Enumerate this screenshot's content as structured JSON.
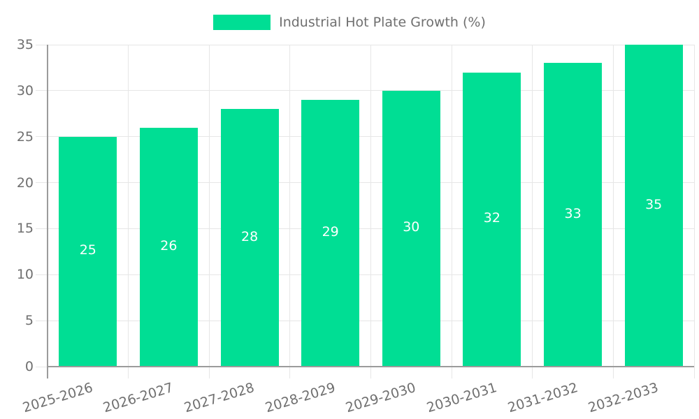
{
  "chart_data": {
    "type": "bar",
    "title": "",
    "legend": {
      "position": "top",
      "label": "Industrial Hot Plate Growth (%)"
    },
    "categories": [
      "2025-2026",
      "2026-2027",
      "2027-2028",
      "2028-2029",
      "2029-2030",
      "2030-2031",
      "2031-2032",
      "2032-2033"
    ],
    "series": [
      {
        "name": "Industrial Hot Plate Growth (%)",
        "values": [
          25,
          26,
          28,
          29,
          30,
          32,
          33,
          35
        ]
      }
    ],
    "value_labels_visible": true,
    "xlabel": "",
    "ylabel": "",
    "ylim": [
      0,
      35
    ],
    "yticks": [
      0,
      5,
      10,
      15,
      20,
      25,
      30,
      35
    ],
    "x_tick_rotation_deg": -17,
    "grid": true,
    "style": {
      "bar_color": "#00DE94",
      "value_label_color": "#ffffff",
      "axis_text_color": "#6f6f6f",
      "legend_text_color": "#6f6f6f",
      "gridline_color": "#e6e6e6",
      "axis_line_color": "#9b9b9b",
      "background_color": "#ffffff"
    }
  }
}
